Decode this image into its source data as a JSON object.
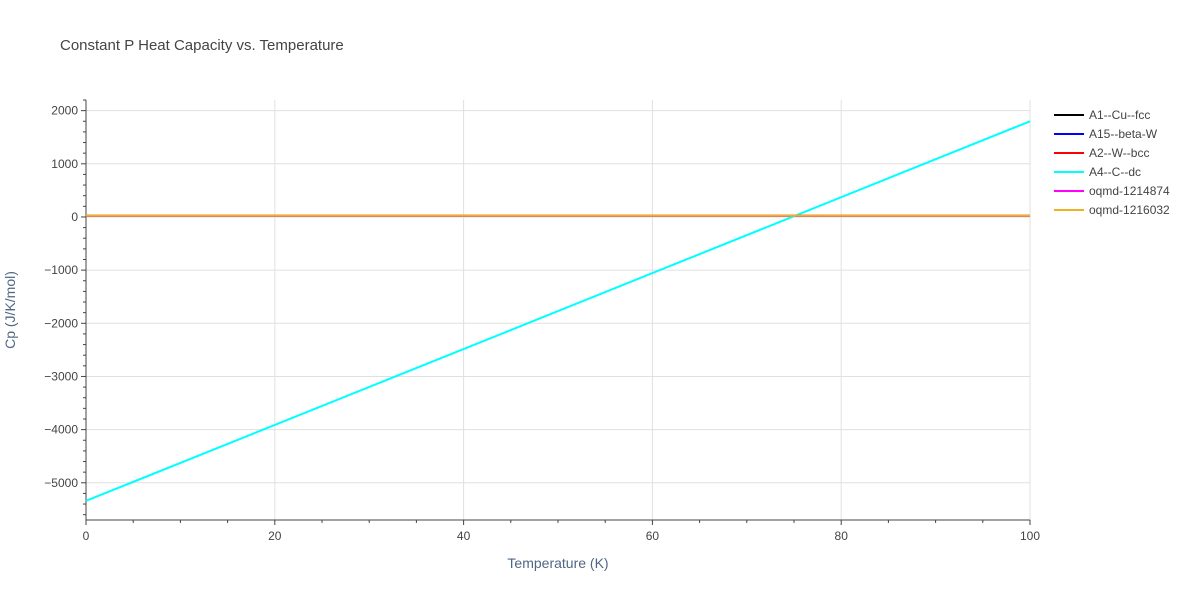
{
  "chart_data": {
    "type": "line",
    "title": "Constant P Heat Capacity vs. Temperature",
    "xlabel": "Temperature (K)",
    "ylabel": "Cp (J/K/mol)",
    "xlim": [
      0,
      100
    ],
    "ylim": [
      -5700,
      2200
    ],
    "xticks": [
      0,
      20,
      40,
      60,
      80,
      100
    ],
    "yticks": [
      2000,
      1000,
      0,
      -1000,
      -2000,
      -3000,
      -4000,
      -5000
    ],
    "ytick_labels": [
      "2000",
      "1000",
      "0",
      "−1000",
      "−2000",
      "−3000",
      "−4000",
      "−5000"
    ],
    "grid": true,
    "legend_position": "top-right",
    "series": [
      {
        "name": "A1--Cu--fcc",
        "color": "#000000",
        "x": [
          0,
          100
        ],
        "y": [
          25,
          25
        ]
      },
      {
        "name": "A15--beta-W",
        "color": "#0000ff",
        "x": [
          0,
          100
        ],
        "y": [
          25,
          25
        ]
      },
      {
        "name": "A2--W--bcc",
        "color": "#ff0000",
        "x": [
          0,
          100
        ],
        "y": [
          25,
          25
        ]
      },
      {
        "name": "A4--C--dc",
        "color": "#00ffff",
        "x": [
          0,
          100
        ],
        "y": [
          -5340,
          1800
        ]
      },
      {
        "name": "oqmd-1214874",
        "color": "#ff00ff",
        "x": [
          0,
          100
        ],
        "y": [
          25,
          25
        ]
      },
      {
        "name": "oqmd-1216032",
        "color": "#f0b020",
        "x": [
          0,
          100
        ],
        "y": [
          25,
          25
        ]
      }
    ]
  }
}
